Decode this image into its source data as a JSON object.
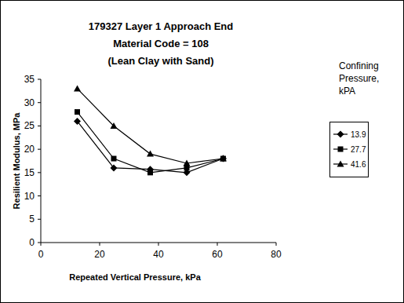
{
  "chart_data": {
    "type": "line",
    "title": [
      "179327 Layer 1 Approach End",
      "Material Code = 108",
      "(Lean Clay with Sand)"
    ],
    "x_label": "Repeated Vertical Pressure, kPa",
    "y_label": "Resilient Modulus, MPa",
    "legend_title": "Confining Pressure, kPA",
    "legend": "right",
    "grid": false,
    "x": [
      12.4,
      24.8,
      37.2,
      49.6,
      62
    ],
    "series": [
      {
        "name": "13.9",
        "color": "#000000",
        "marker": "diamond",
        "values": [
          26,
          16,
          15.7,
          15,
          18
        ]
      },
      {
        "name": "27.7",
        "color": "#000000",
        "marker": "square",
        "values": [
          28,
          18,
          15,
          16,
          18
        ]
      },
      {
        "name": "41.6",
        "color": "#000000",
        "marker": "triangle",
        "values": [
          33,
          25,
          19,
          17,
          18
        ]
      }
    ],
    "xlim": [
      0,
      80
    ],
    "xticks": [
      0,
      20,
      40,
      60,
      80
    ],
    "ylim": [
      0,
      35
    ],
    "yticks": [
      0,
      5,
      10,
      15,
      20,
      25,
      30,
      35
    ]
  }
}
